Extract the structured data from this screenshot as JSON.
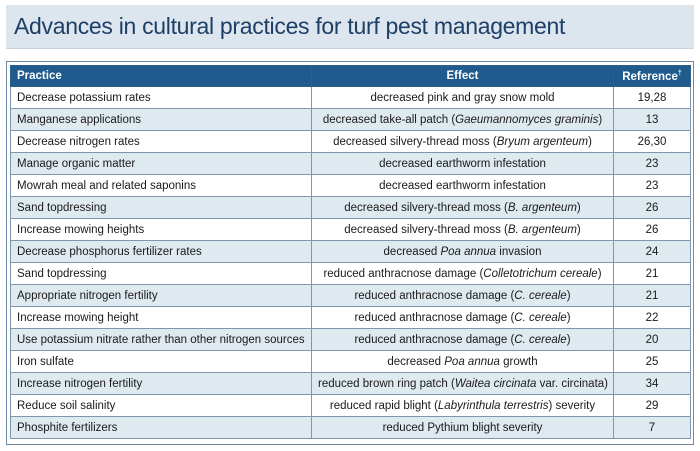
{
  "title": "Advances in cultural practices for turf pest management",
  "table": {
    "headers": {
      "practice": "Practice",
      "effect": "Effect",
      "reference": "Reference",
      "reference_mark": "†"
    },
    "rows": [
      {
        "practice": "Decrease potassium rates",
        "effect_pre": "decreased pink and gray snow mold",
        "effect_italic": "",
        "effect_post": "",
        "reference": "19,28"
      },
      {
        "practice": "Manganese applications",
        "effect_pre": "decreased take-all patch (",
        "effect_italic": "Gaeumannomyces graminis",
        "effect_post": ")",
        "reference": "13"
      },
      {
        "practice": "Decrease nitrogen rates",
        "effect_pre": "decreased silvery-thread moss (",
        "effect_italic": "Bryum argenteum",
        "effect_post": ")",
        "reference": "26,30"
      },
      {
        "practice": "Manage organic matter",
        "effect_pre": "decreased earthworm infestation",
        "effect_italic": "",
        "effect_post": "",
        "reference": "23"
      },
      {
        "practice": "Mowrah meal and related saponins",
        "effect_pre": "decreased earthworm infestation",
        "effect_italic": "",
        "effect_post": "",
        "reference": "23"
      },
      {
        "practice": "Sand topdressing",
        "effect_pre": "decreased silvery-thread moss (",
        "effect_italic": "B. argenteum",
        "effect_post": ")",
        "reference": "26"
      },
      {
        "practice": "Increase mowing heights",
        "effect_pre": "decreased silvery-thread moss (",
        "effect_italic": "B. argenteum",
        "effect_post": ")",
        "reference": "26"
      },
      {
        "practice": "Decrease phosphorus fertilizer rates",
        "effect_pre": "decreased ",
        "effect_italic": "Poa annua",
        "effect_post": " invasion",
        "reference": "24"
      },
      {
        "practice": "Sand topdressing",
        "effect_pre": "reduced anthracnose damage (",
        "effect_italic": "Colletotrichum cereale",
        "effect_post": ")",
        "reference": "21"
      },
      {
        "practice": "Appropriate nitrogen fertility",
        "effect_pre": "reduced anthracnose damage (",
        "effect_italic": "C. cereale",
        "effect_post": ")",
        "reference": "21"
      },
      {
        "practice": "Increase mowing height",
        "effect_pre": "reduced anthracnose damage (",
        "effect_italic": "C. cereale",
        "effect_post": ")",
        "reference": "22"
      },
      {
        "practice": "Use potassium nitrate rather than other nitrogen sources",
        "effect_pre": "reduced anthracnose damage (",
        "effect_italic": "C. cereale",
        "effect_post": ")",
        "reference": "20"
      },
      {
        "practice": "Iron sulfate",
        "effect_pre": "decreased ",
        "effect_italic": "Poa annua",
        "effect_post": " growth",
        "reference": "25"
      },
      {
        "practice": "Increase nitrogen fertility",
        "effect_pre": "reduced brown ring patch (",
        "effect_italic": "Waitea circinata",
        "effect_post": " var. circinata)",
        "reference": "34"
      },
      {
        "practice": "Reduce soil salinity",
        "effect_pre": "reduced rapid blight (",
        "effect_italic": "Labyrinthula terrestris",
        "effect_post": ") severity",
        "reference": "29"
      },
      {
        "practice": "Phosphite fertilizers",
        "effect_pre": "reduced Pythium blight severity",
        "effect_italic": "",
        "effect_post": "",
        "reference": "7"
      }
    ]
  },
  "colors": {
    "header_bg": "#1f5b8c",
    "title_text": "#1d3f66",
    "title_bar_bg": "#dde6ee",
    "alt_row_bg": "#dfe9f0"
  }
}
